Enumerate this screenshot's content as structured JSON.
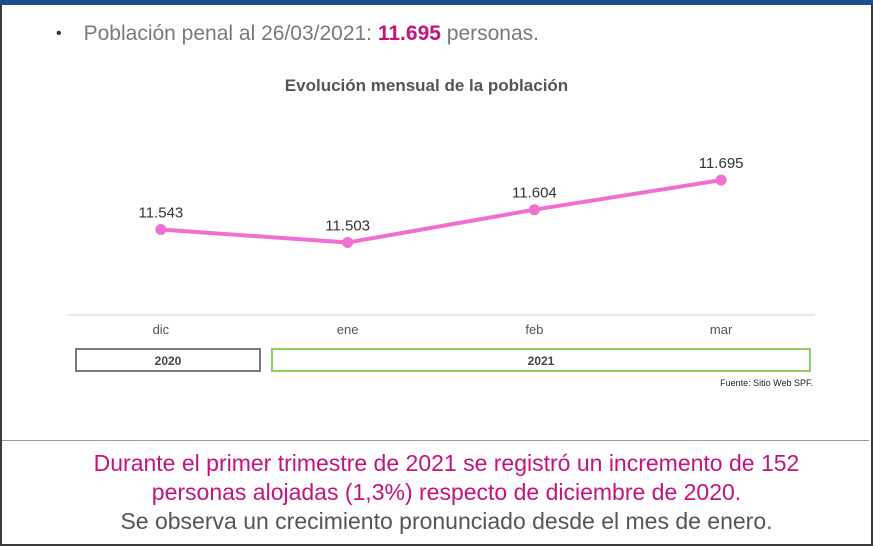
{
  "bullet": {
    "prefix": "Población penal al 26/03/2021: ",
    "highlight": "11.695",
    "suffix": " personas."
  },
  "chart_data": {
    "type": "line",
    "title": "Evolución mensual de la población",
    "categories": [
      "dic",
      "ene",
      "feb",
      "mar"
    ],
    "series": [
      {
        "values": [
          11543,
          11503,
          11604,
          11695
        ]
      }
    ],
    "data_labels": [
      "11.543",
      "11.503",
      "11.604",
      "11.695"
    ],
    "year_groups": [
      {
        "label": "2020",
        "categories": [
          "dic"
        ]
      },
      {
        "label": "2021",
        "categories": [
          "ene",
          "feb",
          "mar"
        ]
      }
    ],
    "ylim": [
      11280,
      11880
    ],
    "line_color": "#f070d0",
    "grid": false,
    "xlabel": "",
    "ylabel": ""
  },
  "source": "Fuente: Sitio Web SPF.",
  "summary": {
    "line1": "Durante el primer trimestre de 2021  se registró un incremento de 152",
    "line2": "personas alojadas (1,3%) respecto de diciembre de 2020.",
    "line3": "Se observa un crecimiento pronunciado desde el mes de enero."
  },
  "colors": {
    "accent_pink": "#c4137e",
    "top_bar": "#1f4e8c",
    "box_2021": "#8cd060",
    "box_2020": "#7a7a7a"
  }
}
